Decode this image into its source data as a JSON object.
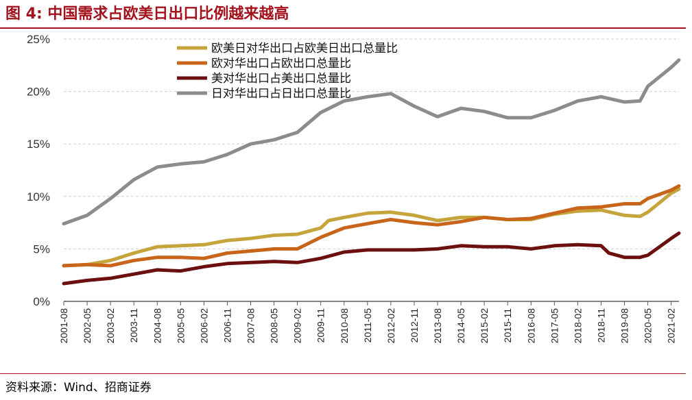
{
  "figure": {
    "title": "图 4:  中国需求占欧美日出口比例越来越高",
    "source": "资料来源：Wind、招商证券"
  },
  "colors": {
    "title": "#a3121c",
    "grid": "#cfcfcf",
    "axis": "#595959"
  },
  "chart_data": {
    "type": "line",
    "title": "",
    "xlabel": "",
    "ylabel": "",
    "ylim": [
      0,
      25
    ],
    "y_ticks": [
      "0%",
      "5%",
      "10%",
      "15%",
      "20%",
      "25%"
    ],
    "grid": true,
    "legend_position": "top-left inside",
    "x_tick_labels": [
      "2001-08",
      "2002-05",
      "2003-02",
      "2003-11",
      "2004-08",
      "2005-05",
      "2006-02",
      "2006-11",
      "2007-08",
      "2008-05",
      "2009-02",
      "2009-11",
      "2010-08",
      "2011-05",
      "2012-02",
      "2012-11",
      "2013-08",
      "2014-05",
      "2015-02",
      "2015-11",
      "2016-08",
      "2017-05",
      "2018-02",
      "2018-11",
      "2019-08",
      "2020-05",
      "2021-02"
    ],
    "x_range": [
      "2001-08",
      "2021-05"
    ],
    "series": [
      {
        "name": "欧美日对华出口占欧美日出口总量比",
        "color": "#c5a43b",
        "points": [
          [
            "2001-08",
            3.4
          ],
          [
            "2002-05",
            3.5
          ],
          [
            "2003-02",
            3.9
          ],
          [
            "2003-11",
            4.6
          ],
          [
            "2004-08",
            5.2
          ],
          [
            "2005-05",
            5.3
          ],
          [
            "2006-02",
            5.4
          ],
          [
            "2006-11",
            5.8
          ],
          [
            "2007-08",
            6.0
          ],
          [
            "2008-05",
            6.3
          ],
          [
            "2009-02",
            6.4
          ],
          [
            "2009-11",
            7.0
          ],
          [
            "2010-02",
            7.7
          ],
          [
            "2010-08",
            8.0
          ],
          [
            "2011-05",
            8.4
          ],
          [
            "2012-02",
            8.5
          ],
          [
            "2012-11",
            8.2
          ],
          [
            "2013-08",
            7.7
          ],
          [
            "2014-05",
            8.0
          ],
          [
            "2015-02",
            8.0
          ],
          [
            "2015-11",
            7.8
          ],
          [
            "2016-08",
            7.8
          ],
          [
            "2017-05",
            8.3
          ],
          [
            "2018-02",
            8.6
          ],
          [
            "2018-11",
            8.7
          ],
          [
            "2019-08",
            8.2
          ],
          [
            "2020-02",
            8.1
          ],
          [
            "2020-05",
            8.5
          ],
          [
            "2021-02",
            10.3
          ],
          [
            "2021-05",
            10.7
          ]
        ]
      },
      {
        "name": "欧对华出口占欧出口总量比",
        "color": "#c8651b",
        "points": [
          [
            "2001-08",
            3.4
          ],
          [
            "2002-05",
            3.5
          ],
          [
            "2003-02",
            3.4
          ],
          [
            "2003-11",
            3.9
          ],
          [
            "2004-08",
            4.2
          ],
          [
            "2005-05",
            4.2
          ],
          [
            "2006-02",
            4.1
          ],
          [
            "2006-11",
            4.6
          ],
          [
            "2007-08",
            4.8
          ],
          [
            "2008-05",
            5.0
          ],
          [
            "2009-02",
            5.0
          ],
          [
            "2009-11",
            6.1
          ],
          [
            "2010-08",
            7.0
          ],
          [
            "2011-05",
            7.4
          ],
          [
            "2012-02",
            7.8
          ],
          [
            "2012-11",
            7.5
          ],
          [
            "2013-08",
            7.3
          ],
          [
            "2014-05",
            7.6
          ],
          [
            "2015-02",
            8.0
          ],
          [
            "2015-11",
            7.8
          ],
          [
            "2016-08",
            7.9
          ],
          [
            "2017-05",
            8.4
          ],
          [
            "2018-02",
            8.9
          ],
          [
            "2018-11",
            9.0
          ],
          [
            "2019-08",
            9.3
          ],
          [
            "2020-02",
            9.3
          ],
          [
            "2020-05",
            9.8
          ],
          [
            "2021-02",
            10.6
          ],
          [
            "2021-05",
            11.0
          ]
        ]
      },
      {
        "name": "美对华出口占美出口总量比",
        "color": "#6b0f0f",
        "points": [
          [
            "2001-08",
            1.7
          ],
          [
            "2002-05",
            2.0
          ],
          [
            "2003-02",
            2.2
          ],
          [
            "2003-11",
            2.6
          ],
          [
            "2004-08",
            3.0
          ],
          [
            "2005-05",
            2.9
          ],
          [
            "2006-02",
            3.3
          ],
          [
            "2006-11",
            3.6
          ],
          [
            "2007-08",
            3.7
          ],
          [
            "2008-05",
            3.8
          ],
          [
            "2009-02",
            3.7
          ],
          [
            "2009-11",
            4.1
          ],
          [
            "2010-08",
            4.7
          ],
          [
            "2011-05",
            4.9
          ],
          [
            "2012-02",
            4.9
          ],
          [
            "2012-11",
            4.9
          ],
          [
            "2013-08",
            5.0
          ],
          [
            "2014-05",
            5.3
          ],
          [
            "2015-02",
            5.2
          ],
          [
            "2015-11",
            5.2
          ],
          [
            "2016-08",
            5.0
          ],
          [
            "2017-05",
            5.3
          ],
          [
            "2018-02",
            5.4
          ],
          [
            "2018-11",
            5.3
          ],
          [
            "2019-02",
            4.6
          ],
          [
            "2019-08",
            4.2
          ],
          [
            "2020-02",
            4.2
          ],
          [
            "2020-05",
            4.4
          ],
          [
            "2021-02",
            6.0
          ],
          [
            "2021-05",
            6.5
          ]
        ]
      },
      {
        "name": "日对华出口占日出口总量比",
        "color": "#8c8c8c",
        "points": [
          [
            "2001-08",
            7.4
          ],
          [
            "2002-05",
            8.2
          ],
          [
            "2003-02",
            9.8
          ],
          [
            "2003-11",
            11.6
          ],
          [
            "2004-08",
            12.8
          ],
          [
            "2005-05",
            13.1
          ],
          [
            "2006-02",
            13.3
          ],
          [
            "2006-11",
            14.0
          ],
          [
            "2007-08",
            15.0
          ],
          [
            "2008-05",
            15.4
          ],
          [
            "2009-02",
            16.1
          ],
          [
            "2009-11",
            18.0
          ],
          [
            "2010-08",
            19.1
          ],
          [
            "2011-05",
            19.5
          ],
          [
            "2012-02",
            19.8
          ],
          [
            "2012-11",
            18.6
          ],
          [
            "2013-08",
            17.6
          ],
          [
            "2014-05",
            18.4
          ],
          [
            "2015-02",
            18.1
          ],
          [
            "2015-11",
            17.5
          ],
          [
            "2016-08",
            17.5
          ],
          [
            "2017-05",
            18.2
          ],
          [
            "2018-02",
            19.1
          ],
          [
            "2018-11",
            19.5
          ],
          [
            "2019-08",
            19.0
          ],
          [
            "2020-02",
            19.1
          ],
          [
            "2020-05",
            20.5
          ],
          [
            "2021-02",
            22.3
          ],
          [
            "2021-05",
            23.0
          ]
        ]
      }
    ]
  }
}
